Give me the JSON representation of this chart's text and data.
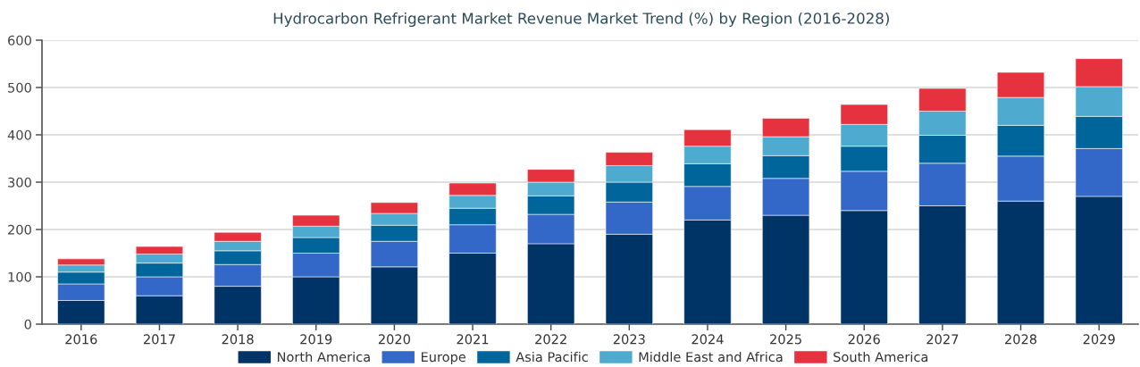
{
  "chart_data": {
    "type": "bar",
    "title": "Hydrocarbon Refrigerant Market Revenue Market Trend (%) by Region (2016-2028)",
    "categories": [
      "2016",
      "2017",
      "2018",
      "2019",
      "2020",
      "2021",
      "2022",
      "2023",
      "2024",
      "2025",
      "2026",
      "2027",
      "2028",
      "2029"
    ],
    "stacked": true,
    "series": [
      {
        "name": "North America",
        "color": "#003366",
        "values": [
          50,
          60,
          80,
          100,
          121,
          150,
          170,
          190,
          220,
          230,
          240,
          250,
          260,
          270
        ]
      },
      {
        "name": "Europe",
        "color": "#3468c8",
        "values": [
          35,
          40,
          46,
          50,
          54,
          60,
          62,
          68,
          71,
          78,
          83,
          90,
          95,
          101
        ]
      },
      {
        "name": "Asia Pacific",
        "color": "#00659a",
        "values": [
          25,
          29,
          29,
          33,
          34,
          35,
          39,
          42,
          48,
          48,
          53,
          59,
          65,
          68
        ]
      },
      {
        "name": "Middle East and Africa",
        "color": "#4eaacf",
        "values": [
          15,
          19,
          20,
          24,
          25,
          27,
          29,
          35,
          37,
          40,
          46,
          51,
          59,
          63
        ]
      },
      {
        "name": "South America",
        "color": "#e6323f",
        "values": [
          13,
          16,
          19,
          23,
          23,
          26,
          27,
          28,
          35,
          39,
          42,
          48,
          53,
          59
        ]
      }
    ],
    "ylim": [
      0,
      600
    ],
    "yticks": [
      0,
      100,
      200,
      300,
      400,
      500,
      600
    ],
    "grid": "y",
    "legend": "bottom"
  }
}
